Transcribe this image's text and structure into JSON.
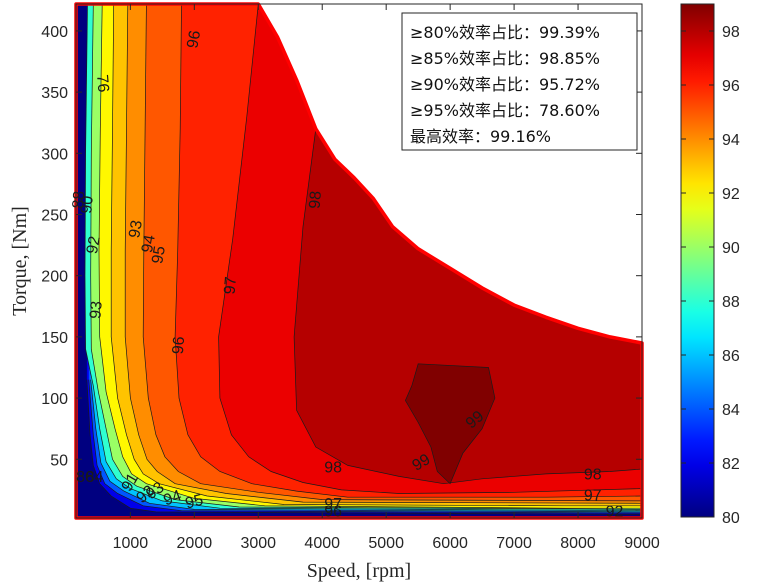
{
  "chart_data": {
    "type": "contour",
    "xlabel": "Speed, [rpm]",
    "ylabel": "Torque, [Nm]",
    "xlim": [
      150,
      9000
    ],
    "ylim": [
      2,
      422
    ],
    "x_ticks": [
      1000,
      2000,
      3000,
      4000,
      5000,
      6000,
      7000,
      8000,
      9000
    ],
    "y_ticks": [
      50,
      100,
      150,
      200,
      250,
      300,
      350,
      400
    ],
    "colorbar": {
      "colormap": "jet",
      "range": [
        80,
        99
      ],
      "ticks": [
        80,
        82,
        84,
        86,
        88,
        90,
        92,
        94,
        96,
        98
      ]
    },
    "stats_box": [
      "≥80%效率占比：99.39%",
      "≥85%效率占比：98.85%",
      "≥90%效率占比：95.72%",
      "≥95%效率占比：78.60%",
      "最高效率：99.16%"
    ],
    "torque_envelope": [
      [
        150,
        422
      ],
      [
        3000,
        422
      ],
      [
        3300,
        395
      ],
      [
        3600,
        360
      ],
      [
        3900,
        320
      ],
      [
        4200,
        295
      ],
      [
        4500,
        280
      ],
      [
        4800,
        263
      ],
      [
        5100,
        240
      ],
      [
        5500,
        222
      ],
      [
        6000,
        206
      ],
      [
        6500,
        190
      ],
      [
        7000,
        176
      ],
      [
        7500,
        166
      ],
      [
        8000,
        157
      ],
      [
        8500,
        150
      ],
      [
        9000,
        145
      ],
      [
        9000,
        2
      ],
      [
        150,
        2
      ]
    ],
    "contour_levels": [
      {
        "level": 82,
        "points": [
          [
            320,
            115
          ],
          [
            370,
            70
          ],
          [
            420,
            45
          ],
          [
            520,
            30
          ],
          [
            700,
            20
          ],
          [
            1000,
            10
          ],
          [
            1400,
            7
          ],
          [
            9000,
            5
          ]
        ]
      },
      {
        "level": 84,
        "points": [
          [
            350,
            115
          ],
          [
            420,
            70
          ],
          [
            480,
            45
          ],
          [
            600,
            30
          ],
          [
            800,
            22
          ],
          [
            1200,
            12
          ],
          [
            1800,
            8
          ],
          [
            9000,
            6
          ]
        ]
      },
      {
        "level": 86,
        "points": [
          [
            380,
            115
          ],
          [
            460,
            75
          ],
          [
            540,
            47
          ],
          [
            680,
            32
          ],
          [
            900,
            24
          ],
          [
            1300,
            14
          ],
          [
            2000,
            9
          ],
          [
            9000,
            7
          ]
        ]
      },
      {
        "level": 88,
        "points": [
          [
            330,
            422
          ],
          [
            300,
            300
          ],
          [
            290,
            200
          ],
          [
            300,
            140
          ],
          [
            420,
            110
          ],
          [
            520,
            75
          ],
          [
            620,
            48
          ],
          [
            780,
            34
          ],
          [
            1000,
            26
          ],
          [
            1500,
            16
          ],
          [
            2400,
            10
          ],
          [
            9000,
            8
          ]
        ]
      },
      {
        "level": 90,
        "points": [
          [
            420,
            422
          ],
          [
            390,
            300
          ],
          [
            380,
            200
          ],
          [
            390,
            140
          ],
          [
            500,
            105
          ],
          [
            620,
            75
          ],
          [
            720,
            50
          ],
          [
            880,
            36
          ],
          [
            1100,
            28
          ],
          [
            1700,
            17
          ],
          [
            2700,
            11
          ],
          [
            9000,
            9
          ]
        ]
      },
      {
        "level": 92,
        "points": [
          [
            560,
            422
          ],
          [
            530,
            320
          ],
          [
            510,
            220
          ],
          [
            520,
            150
          ],
          [
            620,
            105
          ],
          [
            760,
            75
          ],
          [
            880,
            52
          ],
          [
            1020,
            38
          ],
          [
            1250,
            30
          ],
          [
            2000,
            18
          ],
          [
            3100,
            12
          ],
          [
            7800,
            10
          ],
          [
            9000,
            10
          ]
        ]
      },
      {
        "level": 93,
        "points": [
          [
            740,
            422
          ],
          [
            720,
            320
          ],
          [
            700,
            220
          ],
          [
            700,
            150
          ],
          [
            800,
            100
          ],
          [
            940,
            70
          ],
          [
            1060,
            50
          ],
          [
            1200,
            38
          ],
          [
            1450,
            30
          ],
          [
            2200,
            20
          ],
          [
            3400,
            13
          ],
          [
            7800,
            12
          ],
          [
            9000,
            12
          ]
        ]
      },
      {
        "level": 94,
        "points": [
          [
            960,
            422
          ],
          [
            940,
            320
          ],
          [
            920,
            220
          ],
          [
            920,
            150
          ],
          [
            1000,
            100
          ],
          [
            1130,
            70
          ],
          [
            1260,
            50
          ],
          [
            1420,
            40
          ],
          [
            1700,
            30
          ],
          [
            2500,
            22
          ],
          [
            3700,
            15
          ],
          [
            9000,
            14
          ]
        ]
      },
      {
        "level": 95,
        "points": [
          [
            1250,
            422
          ],
          [
            1230,
            320
          ],
          [
            1210,
            220
          ],
          [
            1200,
            150
          ],
          [
            1280,
            100
          ],
          [
            1400,
            70
          ],
          [
            1540,
            52
          ],
          [
            1750,
            40
          ],
          [
            2100,
            30
          ],
          [
            3000,
            23
          ],
          [
            4000,
            17
          ],
          [
            9000,
            16
          ]
        ]
      },
      {
        "level": 96,
        "points": [
          [
            1800,
            422
          ],
          [
            1780,
            320
          ],
          [
            1740,
            220
          ],
          [
            1700,
            150
          ],
          [
            1760,
            100
          ],
          [
            1900,
            70
          ],
          [
            2100,
            52
          ],
          [
            2400,
            40
          ],
          [
            2900,
            30
          ],
          [
            3600,
            24
          ],
          [
            4400,
            19
          ],
          [
            7500,
            19
          ],
          [
            9000,
            20
          ]
        ]
      },
      {
        "level": 97,
        "points": [
          [
            3000,
            422
          ],
          [
            2820,
            330
          ],
          [
            2600,
            230
          ],
          [
            2380,
            150
          ],
          [
            2400,
            100
          ],
          [
            2580,
            70
          ],
          [
            2850,
            52
          ],
          [
            3200,
            40
          ],
          [
            3700,
            31
          ],
          [
            4300,
            25
          ],
          [
            5200,
            22
          ],
          [
            7000,
            23
          ],
          [
            9000,
            26
          ]
        ]
      },
      {
        "level": 98,
        "points": [
          [
            3900,
            320
          ],
          [
            3700,
            240
          ],
          [
            3560,
            150
          ],
          [
            3600,
            90
          ],
          [
            3900,
            60
          ],
          [
            4400,
            45
          ],
          [
            5200,
            36
          ],
          [
            5900,
            30
          ],
          [
            6500,
            34
          ],
          [
            7500,
            38
          ],
          [
            8500,
            40
          ],
          [
            9000,
            42
          ]
        ]
      },
      {
        "level": 99,
        "points": [
          [
            5500,
            128
          ],
          [
            6600,
            125
          ],
          [
            6700,
            100
          ],
          [
            6500,
            75
          ],
          [
            6200,
            55
          ],
          [
            6000,
            30
          ],
          [
            5800,
            40
          ],
          [
            5700,
            60
          ],
          [
            5500,
            80
          ],
          [
            5300,
            98
          ],
          [
            5400,
            110
          ],
          [
            5500,
            128
          ]
        ]
      }
    ],
    "contour_labels": [
      {
        "text": "76",
        "x": 560,
        "y": 357,
        "angle": 85
      },
      {
        "text": "96",
        "x": 2000,
        "y": 393,
        "angle": -80
      },
      {
        "text": "98",
        "x": 3900,
        "y": 262,
        "angle": -85
      },
      {
        "text": "97",
        "x": 2570,
        "y": 192,
        "angle": -85
      },
      {
        "text": "96",
        "x": 1760,
        "y": 143,
        "angle": -85
      },
      {
        "text": "88",
        "x": 200,
        "y": 262,
        "angle": -85
      },
      {
        "text": "90",
        "x": 330,
        "y": 258,
        "angle": -85
      },
      {
        "text": "93",
        "x": 1090,
        "y": 238,
        "angle": -80
      },
      {
        "text": "94",
        "x": 1290,
        "y": 226,
        "angle": -80
      },
      {
        "text": "92",
        "x": 430,
        "y": 225,
        "angle": -80
      },
      {
        "text": "95",
        "x": 1450,
        "y": 217,
        "angle": -80
      },
      {
        "text": "93",
        "x": 470,
        "y": 172,
        "angle": -85
      },
      {
        "text": "99",
        "x": 6390,
        "y": 82,
        "angle": -40
      },
      {
        "text": "99",
        "x": 5550,
        "y": 47,
        "angle": -30
      },
      {
        "text": "98",
        "x": 4170,
        "y": 43,
        "angle": 0
      },
      {
        "text": "98",
        "x": 8230,
        "y": 37,
        "angle": 0
      },
      {
        "text": "97",
        "x": 8230,
        "y": 20,
        "angle": 0
      },
      {
        "text": "92",
        "x": 8570,
        "y": 7,
        "angle": 0
      },
      {
        "text": "97",
        "x": 4170,
        "y": 13,
        "angle": 0
      },
      {
        "text": "96",
        "x": 4170,
        "y": 7,
        "angle": 0
      },
      {
        "text": "95",
        "x": 2000,
        "y": 15,
        "angle": -15
      },
      {
        "text": "94",
        "x": 1660,
        "y": 18,
        "angle": -20
      },
      {
        "text": "93",
        "x": 1390,
        "y": 24,
        "angle": -35
      },
      {
        "text": "92",
        "x": 1240,
        "y": 21,
        "angle": -40
      },
      {
        "text": "91",
        "x": 1000,
        "y": 31,
        "angle": -60
      },
      {
        "text": "86",
        "x": 290,
        "y": 35,
        "angle": 0
      },
      {
        "text": "84",
        "x": 440,
        "y": 35,
        "angle": 0
      }
    ]
  }
}
